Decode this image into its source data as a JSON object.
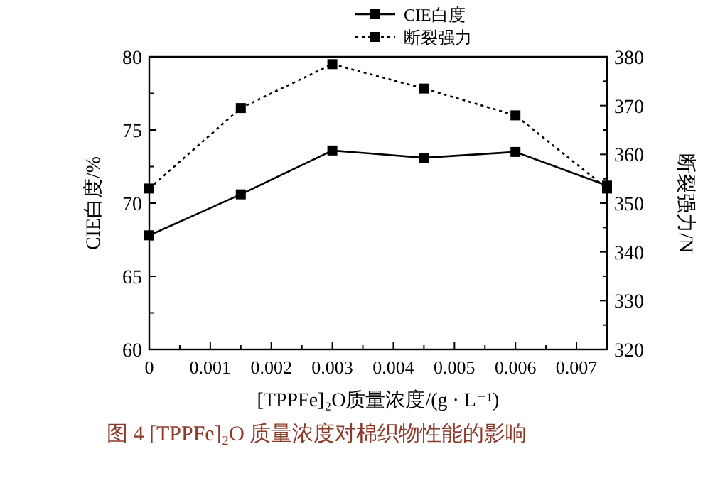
{
  "chart_data": {
    "type": "line",
    "xlabel": "[TPPFe]₂O质量浓度/(g · L⁻¹)",
    "ylabel": "CIE白度/%",
    "y2label": "断裂强力/N",
    "annotations": [
      "图 4 [TPPFe]₂O 质量浓度对棉织物性能的影响"
    ],
    "x": [
      0,
      0.0015,
      0.003,
      0.0045,
      0.006,
      0.0075
    ],
    "series": [
      {
        "name": "CIE白度",
        "color": "#000000",
        "line_style": "solid",
        "values": [
          67.8,
          70.6,
          73.6,
          73.1,
          73.5,
          71.2
        ]
      },
      {
        "name": "断裂强力",
        "color": "#000000",
        "line_style": "dotted",
        "axis": "y2",
        "values": [
          353,
          369.5,
          378.5,
          373.5,
          368,
          353
        ]
      }
    ],
    "xlim": [
      0,
      0.0075
    ],
    "xticks": [
      0,
      0.001,
      0.002,
      0.003,
      0.004,
      0.005,
      0.006,
      0.007
    ],
    "ylim": [
      60,
      80
    ],
    "yticks": [
      60,
      65,
      70,
      75,
      80
    ],
    "y2lim": [
      320,
      380
    ],
    "y2ticks": [
      320,
      330,
      340,
      350,
      360,
      370,
      380
    ],
    "marker": "square",
    "legend": "top right",
    "grid": false
  }
}
